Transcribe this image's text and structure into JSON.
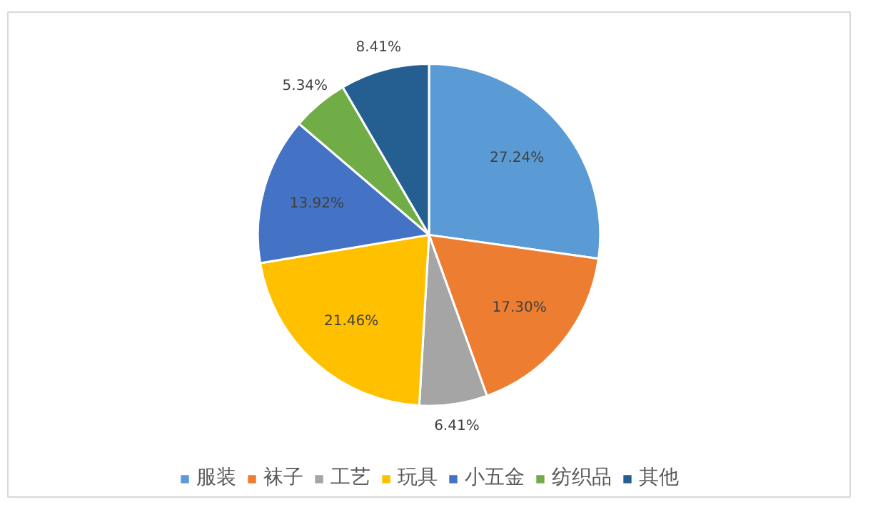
{
  "chart_data": {
    "type": "pie",
    "categories": [
      "服装",
      "袜子",
      "工艺",
      "玩具",
      "小五金",
      "纺织品",
      "其他"
    ],
    "values": [
      27.24,
      17.3,
      6.41,
      21.46,
      13.92,
      5.34,
      8.41
    ],
    "value_labels": [
      "27.24%",
      "17.30%",
      "6.41%",
      "21.46%",
      "13.92%",
      "5.34%",
      "8.41%"
    ],
    "colors": [
      "#5b9bd5",
      "#ed7d31",
      "#a5a5a5",
      "#ffc000",
      "#4472c4",
      "#70ad47",
      "#255e91"
    ],
    "legend": "bottom"
  }
}
